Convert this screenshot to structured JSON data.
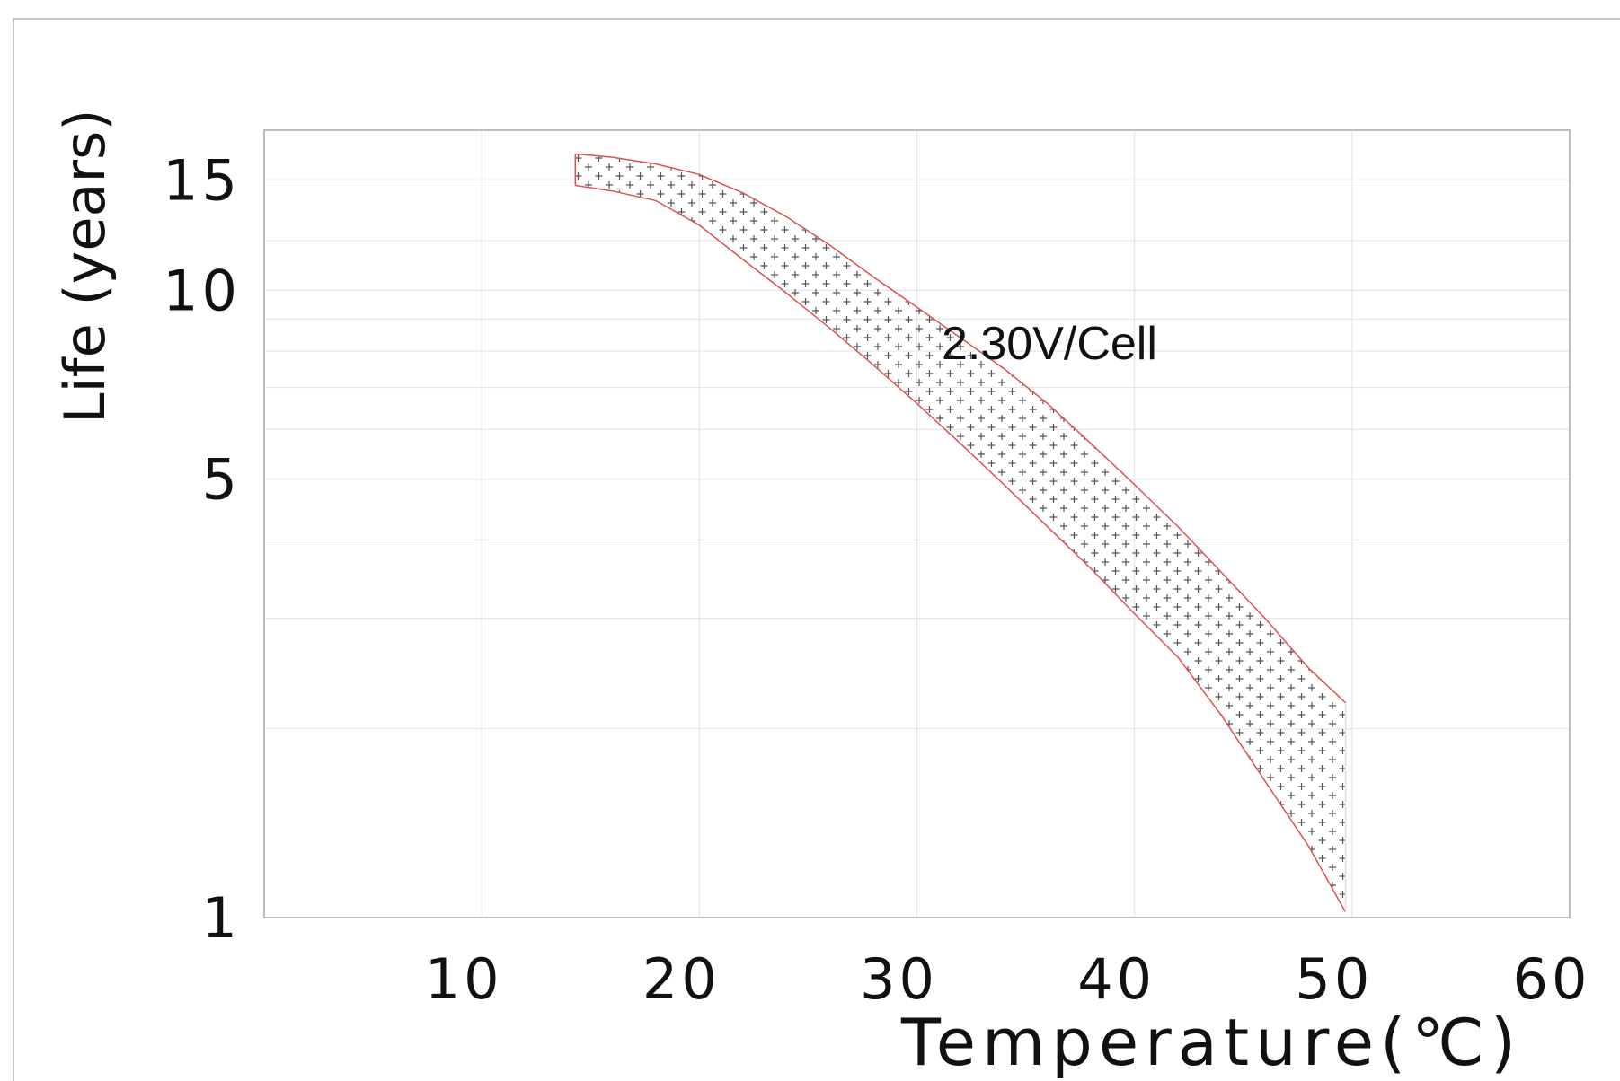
{
  "chart_data": {
    "type": "area",
    "annotation": "2.30V/Cell",
    "xlabel": "Temperature(℃)",
    "ylabel": "Life (years)",
    "xlim": [
      0,
      60
    ],
    "ylim": [
      1,
      18
    ],
    "y_scale": "log",
    "grid": true,
    "x_ticks": [
      "10",
      "20",
      "30",
      "40",
      "50",
      "60"
    ],
    "x_tick_values": [
      10,
      20,
      30,
      40,
      50,
      60
    ],
    "y_ticks": [
      "1",
      "5",
      "10",
      "15"
    ],
    "y_tick_values": [
      1,
      5,
      10,
      15
    ],
    "band_color": "#e05050",
    "grid_color": "#e6e6e6",
    "series": [
      {
        "role": "upper",
        "x": [
          14.3,
          16,
          18,
          20,
          22,
          24,
          26,
          28,
          30,
          32,
          34,
          36,
          38,
          40,
          42,
          44,
          46,
          48,
          49.7
        ],
        "y": [
          16.5,
          16.3,
          15.9,
          15.3,
          14.3,
          13.1,
          11.8,
          10.5,
          9.4,
          8.4,
          7.5,
          6.6,
          5.7,
          4.9,
          4.2,
          3.55,
          3.0,
          2.5,
          2.2
        ]
      },
      {
        "role": "lower",
        "x": [
          14.3,
          16,
          18,
          20,
          22,
          24,
          26,
          28,
          30,
          32,
          34,
          36,
          38,
          40,
          42,
          44,
          46,
          48,
          49.7
        ],
        "y": [
          14.7,
          14.4,
          13.9,
          12.7,
          11.2,
          9.9,
          8.7,
          7.6,
          6.6,
          5.7,
          4.9,
          4.2,
          3.6,
          3.05,
          2.6,
          2.1,
          1.65,
          1.3,
          1.02
        ]
      }
    ]
  }
}
